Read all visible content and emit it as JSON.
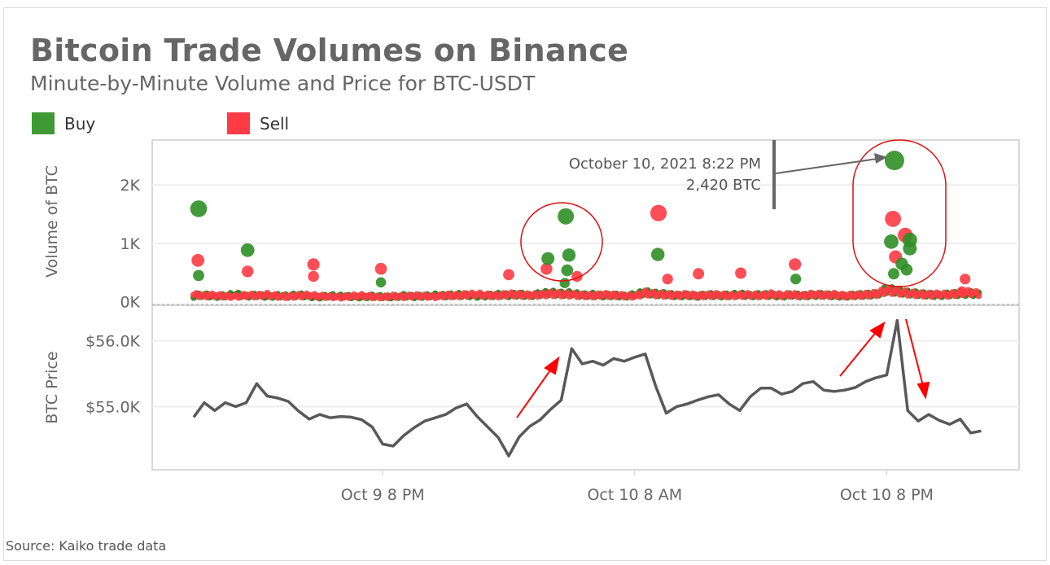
{
  "title": "Bitcoin Trade Volumes on Binance",
  "subtitle": "Minute-by-Minute Volume and Price for BTC-USDT",
  "legend": [
    {
      "label": "Buy",
      "color": "#3f9a35"
    },
    {
      "label": "Sell",
      "color": "#ff3b45"
    }
  ],
  "source": "Source: Kaiko trade data",
  "chart_data": [
    {
      "type": "scatter",
      "ylabel": "Volume of BTC",
      "ylim": [
        -60,
        2770
      ],
      "yticks": [
        {
          "value": 0,
          "label": "0K"
        },
        {
          "value": 1000,
          "label": "1K"
        },
        {
          "value": 2000,
          "label": "2K"
        }
      ],
      "grid": true,
      "annotation": {
        "line1": "October 10, 2021 8:22 PM",
        "line2": "2,420 BTC",
        "time": "2021-10-10 20:22",
        "value": 2420
      },
      "highlight_regions": [
        "2021-10-10 03:30 to 05:30",
        "2021-10-10 19:30 to 21:45"
      ],
      "series": [
        {
          "name": "Buy",
          "color": "#2f8f26",
          "points": [
            [
              "2021-10-09 11:14",
              1594
            ],
            [
              "2021-10-09 11:14",
              450
            ],
            [
              "2021-10-09 13:34",
              884
            ],
            [
              "2021-10-09 19:55",
              333
            ],
            [
              "2021-10-10 03:52",
              740
            ],
            [
              "2021-10-10 04:43",
              1464
            ],
            [
              "2021-10-10 04:52",
              800
            ],
            [
              "2021-10-10 04:47",
              540
            ],
            [
              "2021-10-10 04:40",
              320
            ],
            [
              "2021-10-10 09:06",
              810
            ],
            [
              "2021-10-10 15:40",
              390
            ],
            [
              "2021-10-10 20:22",
              2420
            ],
            [
              "2021-10-10 21:06",
              1060
            ],
            [
              "2021-10-10 20:13",
              1030
            ],
            [
              "2021-10-10 21:06",
              913
            ],
            [
              "2021-10-10 20:43",
              650
            ],
            [
              "2021-10-10 20:20",
              480
            ],
            [
              "2021-10-10 20:57",
              550
            ]
          ],
          "baseline": [
            120,
            150,
            110,
            130,
            160,
            120,
            140,
            110,
            130,
            120,
            150,
            110,
            100,
            130,
            120,
            110,
            100,
            120,
            110,
            100,
            130,
            110,
            120,
            140,
            130,
            150,
            140,
            120,
            130,
            150,
            140,
            160,
            130,
            170,
            190,
            170,
            180,
            140,
            150,
            130,
            140,
            120,
            150,
            200,
            170,
            160,
            130,
            140,
            120,
            150,
            130,
            140,
            160,
            130,
            150,
            140,
            120,
            150,
            130,
            140,
            150,
            130,
            120,
            140,
            150,
            160,
            260,
            230,
            190,
            170,
            150,
            140,
            160,
            170,
            180,
            150
          ]
        },
        {
          "name": "Sell",
          "color": "#ff3b45",
          "points": [
            [
              "2021-10-09 11:12",
              710
            ],
            [
              "2021-10-09 13:34",
              520
            ],
            [
              "2021-10-09 16:42",
              640
            ],
            [
              "2021-10-09 16:42",
              435
            ],
            [
              "2021-10-09 19:55",
              565
            ],
            [
              "2021-10-10 02:00",
              464
            ],
            [
              "2021-10-10 05:15",
              435
            ],
            [
              "2021-10-10 03:48",
              565
            ],
            [
              "2021-10-10 09:08",
              1520
            ],
            [
              "2021-10-10 09:34",
              390
            ],
            [
              "2021-10-10 11:02",
              480
            ],
            [
              "2021-10-10 13:03",
              490
            ],
            [
              "2021-10-10 15:38",
              640
            ],
            [
              "2021-10-10 20:18",
              1420
            ],
            [
              "2021-10-10 20:53",
              1140
            ],
            [
              "2021-10-10 20:25",
              770
            ],
            [
              "2021-10-10 23:44",
              390
            ],
            [
              "2021-10-10 23:35",
              190
            ]
          ],
          "baseline": [
            150,
            130,
            140,
            120,
            110,
            140,
            130,
            150,
            120,
            110,
            130,
            140,
            120,
            110,
            100,
            120,
            130,
            110,
            100,
            120,
            110,
            130,
            120,
            110,
            140,
            130,
            150,
            160,
            140,
            130,
            160,
            150,
            140,
            150,
            170,
            160,
            150,
            140,
            130,
            150,
            140,
            130,
            120,
            190,
            160,
            150,
            140,
            150,
            130,
            140,
            150,
            130,
            140,
            150,
            130,
            160,
            140,
            150,
            130,
            160,
            140,
            150,
            130,
            140,
            150,
            170,
            240,
            220,
            180,
            160,
            150,
            160,
            150,
            190,
            200,
            160
          ]
        }
      ]
    },
    {
      "type": "line",
      "ylabel": "BTC Price",
      "ylim": [
        54040,
        56540
      ],
      "yticks": [
        {
          "value": 55000,
          "label": "$55.0K"
        },
        {
          "value": 56000,
          "label": "$56.0K"
        }
      ],
      "xticks": [
        {
          "time": "2021-10-09 20:00",
          "label": "Oct 9 8 PM"
        },
        {
          "time": "2021-10-10 08:00",
          "label": "Oct 10 8 AM"
        },
        {
          "time": "2021-10-10 20:00",
          "label": "Oct 10 8 PM"
        }
      ],
      "xstart": "2021-10-09 11:00",
      "interval_minutes": 30,
      "color": "#595959",
      "values": [
        54840,
        55060,
        54940,
        55060,
        55000,
        55060,
        55350,
        55160,
        55130,
        55080,
        54930,
        54810,
        54880,
        54830,
        54850,
        54840,
        54800,
        54690,
        54430,
        54400,
        54560,
        54680,
        54780,
        54830,
        54880,
        54980,
        55040,
        54850,
        54690,
        54530,
        54250,
        54540,
        54700,
        54800,
        54960,
        55100,
        55880,
        55650,
        55690,
        55630,
        55730,
        55690,
        55750,
        55800,
        55310,
        54900,
        55000,
        55040,
        55100,
        55150,
        55180,
        55040,
        54940,
        55150,
        55280,
        55280,
        55190,
        55230,
        55350,
        55380,
        55250,
        55230,
        55250,
        55290,
        55380,
        55440,
        55480,
        56310,
        54940,
        54780,
        54880,
        54790,
        54730,
        54810,
        54600,
        54630
      ],
      "trend_arrows": [
        "up",
        "up",
        "down"
      ]
    }
  ]
}
